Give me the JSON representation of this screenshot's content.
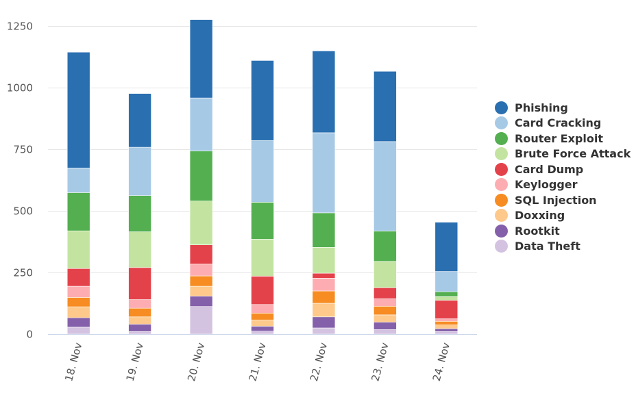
{
  "chart_data": {
    "type": "bar",
    "stacked": true,
    "title": "",
    "xlabel": "",
    "ylabel": "",
    "categories": [
      "18. Nov",
      "19. Nov",
      "20. Nov",
      "21. Nov",
      "22. Nov",
      "23. Nov",
      "24. Nov"
    ],
    "ylim": [
      0,
      1300
    ],
    "yticks": [
      0,
      250,
      500,
      750,
      1000,
      1250
    ],
    "grid": true,
    "legend_position": "right",
    "series": [
      {
        "name": "Data Theft",
        "color": "#d4c2e1",
        "values": [
          28,
          10,
          112,
          12,
          25,
          18,
          10
        ]
      },
      {
        "name": "Rootkit",
        "color": "#8460aa",
        "values": [
          38,
          30,
          42,
          20,
          45,
          30,
          12
        ]
      },
      {
        "name": "Doxxing",
        "color": "#fec98a",
        "values": [
          45,
          30,
          40,
          25,
          55,
          30,
          15
        ]
      },
      {
        "name": "SQL Injection",
        "color": "#f68c22",
        "values": [
          38,
          35,
          42,
          28,
          50,
          35,
          15
        ]
      },
      {
        "name": "Keylogger",
        "color": "#fdadb1",
        "values": [
          45,
          35,
          48,
          35,
          52,
          30,
          10
        ]
      },
      {
        "name": "Card Dump",
        "color": "#e4424b",
        "values": [
          72,
          130,
          78,
          115,
          20,
          45,
          75
        ]
      },
      {
        "name": "Brute Force Attack",
        "color": "#c3e4a1",
        "values": [
          153,
          145,
          178,
          150,
          105,
          107,
          15
        ]
      },
      {
        "name": "Router Exploit",
        "color": "#53af4f",
        "values": [
          155,
          147,
          203,
          150,
          140,
          123,
          20
        ]
      },
      {
        "name": "Card Cracking",
        "color": "#a6c9e6",
        "values": [
          100,
          196,
          215,
          250,
          325,
          363,
          82
        ]
      },
      {
        "name": "Phishing",
        "color": "#2a6fb0",
        "values": [
          470,
          218,
          318,
          325,
          332,
          285,
          200
        ]
      }
    ],
    "legend_order": [
      "Phishing",
      "Card Cracking",
      "Router Exploit",
      "Brute Force Attack",
      "Card Dump",
      "Keylogger",
      "SQL Injection",
      "Doxxing",
      "Rootkit",
      "Data Theft"
    ]
  }
}
